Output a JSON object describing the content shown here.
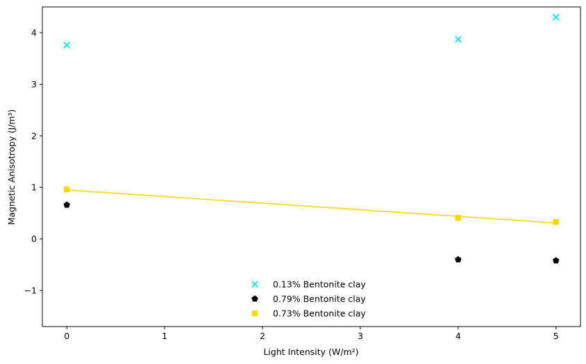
{
  "chart_data": {
    "type": "scatter",
    "xlabel": "Light Intensity (W/m²)",
    "ylabel": "Magnetic Anisotropy (J/m³)",
    "xlim": [
      -0.25,
      5.25
    ],
    "ylim": [
      -1.7,
      4.5
    ],
    "x_ticks": [
      0,
      1,
      2,
      3,
      4,
      5
    ],
    "x_tick_labels": [
      "0",
      "1",
      "2",
      "3",
      "4",
      "5"
    ],
    "y_ticks": [
      -1,
      0,
      1,
      2,
      3,
      4
    ],
    "y_tick_labels": [
      "−1",
      "0",
      "1",
      "2",
      "3",
      "4"
    ],
    "grid": false,
    "legend_position": "lower-center",
    "series": [
      {
        "name": "0.13% Bentonite clay",
        "marker": "x",
        "color": "#00e5ee",
        "points": [
          {
            "x": 0,
            "y": 3.76
          },
          {
            "x": 4,
            "y": 3.87
          },
          {
            "x": 5,
            "y": 4.3
          }
        ]
      },
      {
        "name": "0.79% Bentonite clay",
        "marker": "pentagon",
        "color": "#000000",
        "points": [
          {
            "x": 0,
            "y": 0.66
          },
          {
            "x": 4,
            "y": -0.4
          },
          {
            "x": 5,
            "y": -0.42
          }
        ]
      },
      {
        "name": "0.73% Bentonite clay",
        "marker": "square",
        "color": "#ffd700",
        "points": [
          {
            "x": 0,
            "y": 0.96
          },
          {
            "x": 4,
            "y": 0.41
          },
          {
            "x": 5,
            "y": 0.33
          }
        ]
      }
    ],
    "trend_line": {
      "color": "#ffd700",
      "start": {
        "x": 0,
        "y": 0.95
      },
      "end": {
        "x": 5,
        "y": 0.31
      }
    }
  }
}
